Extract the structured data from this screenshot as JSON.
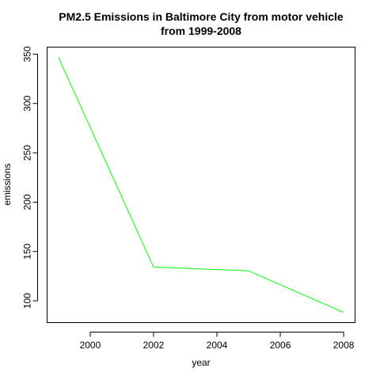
{
  "chart_data": {
    "type": "line",
    "title_lines": [
      "PM2.5 Emissions in Baltimore City from motor vehicle",
      "from 1999-2008"
    ],
    "xlabel": "year",
    "ylabel": "emissions",
    "x": [
      1999,
      2002,
      2005,
      2008
    ],
    "series": [
      {
        "values": [
          346.8,
          134.3,
          130.4,
          88.3
        ],
        "color": "#00ff00"
      }
    ],
    "xlim": [
      1998.64,
      2008.36
    ],
    "ylim": [
      77.96,
      357.14
    ],
    "x_ticks": [
      2000,
      2002,
      2004,
      2006,
      2008
    ],
    "y_ticks": [
      100,
      150,
      200,
      250,
      300,
      350
    ],
    "grid": false,
    "legend": "none"
  }
}
